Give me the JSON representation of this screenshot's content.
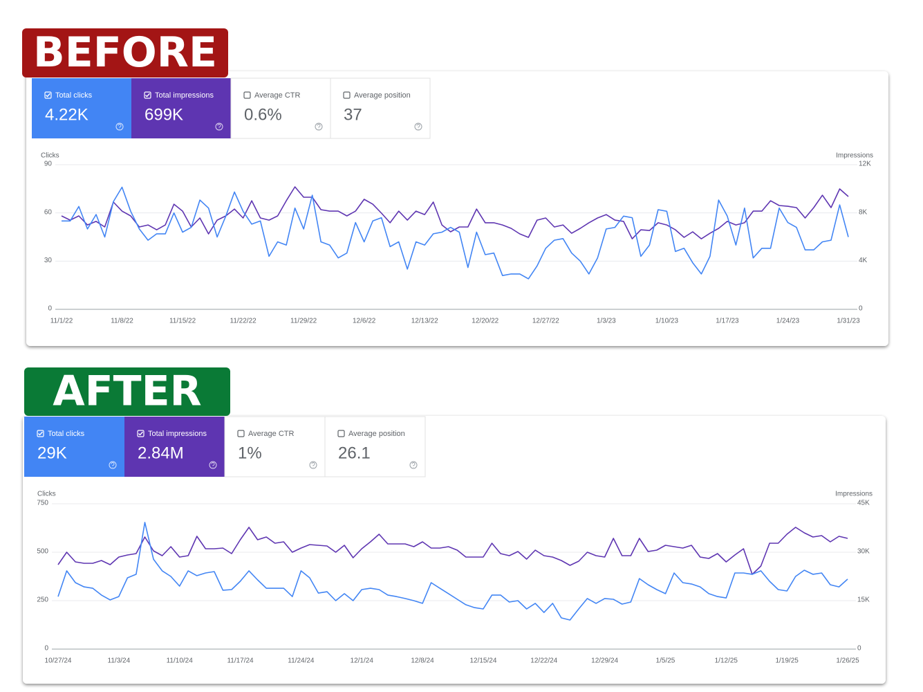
{
  "chart_data": [
    {
      "type": "line",
      "label": "BEFORE",
      "y_label": "Clicks",
      "y2_label": "Impressions",
      "categories": [
        "11/1/22",
        null,
        null,
        null,
        null,
        null,
        null,
        "11/8/22",
        null,
        null,
        null,
        null,
        null,
        null,
        "11/15/22",
        null,
        null,
        null,
        null,
        null,
        null,
        "11/22/22",
        null,
        null,
        null,
        null,
        null,
        null,
        "11/29/22",
        null,
        null,
        null,
        null,
        null,
        null,
        "12/6/22",
        null,
        null,
        null,
        null,
        null,
        null,
        "12/13/22",
        null,
        null,
        null,
        null,
        null,
        null,
        "12/20/22",
        null,
        null,
        null,
        null,
        null,
        null,
        "12/27/22",
        null,
        null,
        null,
        null,
        null,
        null,
        "1/3/23",
        null,
        null,
        null,
        null,
        null,
        null,
        "1/10/23",
        null,
        null,
        null,
        null,
        null,
        null,
        "1/17/23",
        null,
        null,
        null,
        null,
        null,
        null,
        "1/24/23",
        null,
        null,
        null,
        null,
        null,
        null,
        "1/31/23"
      ],
      "ylim": [
        0,
        90
      ],
      "yticks": [
        0,
        30,
        60,
        90
      ],
      "y2lim": [
        0,
        12000
      ],
      "y2ticks": [
        0,
        {
          "value": 4000,
          "label": "4K"
        },
        {
          "value": 8000,
          "label": "8K"
        },
        {
          "value": 12000,
          "label": "12K"
        }
      ],
      "grid": true,
      "series": [
        {
          "name": "Total clicks",
          "total": "4.22K",
          "color": "#4285f4",
          "values": [
            55,
            55,
            64,
            50,
            59,
            45,
            67,
            76,
            61,
            50,
            43,
            47,
            47,
            60,
            48,
            51,
            68,
            63,
            45,
            58,
            73,
            61,
            53,
            55,
            33,
            42,
            40,
            63,
            50,
            71,
            42,
            40,
            32,
            35,
            54,
            42,
            55,
            57,
            39,
            42,
            25,
            42,
            40,
            47,
            48,
            51,
            48,
            26,
            48,
            34,
            35,
            21,
            22,
            22,
            19,
            27,
            38,
            43,
            44,
            35,
            30,
            22,
            32,
            50,
            51,
            58,
            57,
            33,
            40,
            62,
            61,
            36,
            38,
            29,
            22,
            33,
            68,
            58,
            40,
            63,
            32,
            38,
            38,
            63,
            54,
            51,
            37,
            37,
            42,
            43,
            65,
            45
          ]
        },
        {
          "name": "Total impressions",
          "total": "699K",
          "color": "#5e35b1",
          "axis": "y2",
          "values": [
            7750,
            7400,
            7750,
            7000,
            7300,
            6830,
            8900,
            8150,
            7750,
            6830,
            7000,
            6600,
            7000,
            8720,
            8150,
            6830,
            7580,
            6260,
            7400,
            7750,
            8320,
            7580,
            9010,
            7580,
            7400,
            7750,
            9010,
            10160,
            9300,
            9300,
            8270,
            8150,
            8150,
            7750,
            8150,
            9130,
            8720,
            7980,
            7180,
            8150,
            7400,
            8150,
            7860,
            8900,
            7000,
            6430,
            6830,
            6830,
            8320,
            7180,
            7180,
            7000,
            6720,
            6260,
            5970,
            7400,
            7580,
            6830,
            7000,
            6310,
            6720,
            7180,
            7580,
            7860,
            7400,
            7300,
            5850,
            6600,
            6540,
            7180,
            7000,
            6600,
            5970,
            6430,
            5850,
            6310,
            6720,
            7300,
            7000,
            7180,
            8150,
            8150,
            9010,
            8610,
            8550,
            8440,
            7580,
            8440,
            9470,
            8440,
            9990,
            9360
          ]
        }
      ],
      "other_metrics": [
        {
          "name": "Average CTR",
          "value": "0.6%"
        },
        {
          "name": "Average position",
          "value": "37"
        }
      ]
    },
    {
      "type": "line",
      "label": "AFTER",
      "y_label": "Clicks",
      "y2_label": "Impressions",
      "categories": [
        "10/27/24",
        null,
        null,
        null,
        null,
        null,
        null,
        "11/3/24",
        null,
        null,
        null,
        null,
        null,
        null,
        "11/10/24",
        null,
        null,
        null,
        null,
        null,
        null,
        "11/17/24",
        null,
        null,
        null,
        null,
        null,
        null,
        "11/24/24",
        null,
        null,
        null,
        null,
        null,
        null,
        "12/1/24",
        null,
        null,
        null,
        null,
        null,
        null,
        "12/8/24",
        null,
        null,
        null,
        null,
        null,
        null,
        "12/15/24",
        null,
        null,
        null,
        null,
        null,
        null,
        "12/22/24",
        null,
        null,
        null,
        null,
        null,
        null,
        "12/29/24",
        null,
        null,
        null,
        null,
        null,
        null,
        "1/5/25",
        null,
        null,
        null,
        null,
        null,
        null,
        "1/12/25",
        null,
        null,
        null,
        null,
        null,
        null,
        "1/19/25",
        null,
        null,
        null,
        null,
        null,
        null,
        "1/26/25"
      ],
      "ylim": [
        0,
        750
      ],
      "yticks": [
        0,
        250,
        500,
        750
      ],
      "y2lim": [
        0,
        45000
      ],
      "y2ticks": [
        0,
        {
          "value": 15000,
          "label": "15K"
        },
        {
          "value": 30000,
          "label": "30K"
        },
        {
          "value": 45000,
          "label": "45K"
        }
      ],
      "grid": true,
      "series": [
        {
          "name": "Total clicks",
          "total": "29K",
          "color": "#4285f4",
          "values": [
            271,
            404,
            343,
            321,
            314,
            279,
            254,
            271,
            368,
            386,
            654,
            464,
            404,
            375,
            325,
            404,
            379,
            393,
            400,
            304,
            307,
            350,
            404,
            357,
            314,
            314,
            314,
            271,
            404,
            368,
            289,
            296,
            250,
            286,
            250,
            307,
            314,
            307,
            279,
            271,
            261,
            250,
            236,
            343,
            314,
            286,
            257,
            229,
            214,
            207,
            279,
            279,
            243,
            250,
            207,
            236,
            189,
            236,
            161,
            150,
            207,
            261,
            236,
            261,
            257,
            232,
            243,
            364,
            332,
            307,
            286,
            393,
            343,
            336,
            321,
            286,
            271,
            264,
            393,
            393,
            386,
            404,
            350,
            307,
            300,
            375,
            407,
            386,
            393,
            332,
            321,
            361
          ]
        },
        {
          "name": "Total impressions",
          "total": "2.84M",
          "color": "#5e35b1",
          "axis": "y2",
          "values": [
            26140,
            30000,
            27000,
            26570,
            26570,
            27430,
            26140,
            28500,
            29140,
            29570,
            34710,
            30430,
            28930,
            31710,
            28500,
            28930,
            34930,
            31070,
            31070,
            31290,
            29570,
            33860,
            37710,
            33860,
            34710,
            32790,
            33210,
            30000,
            31290,
            32360,
            32140,
            31930,
            30000,
            32140,
            28290,
            31070,
            33210,
            35570,
            32570,
            32570,
            32570,
            31710,
            33210,
            31290,
            31290,
            31710,
            30640,
            28500,
            28500,
            28500,
            32790,
            29570,
            28930,
            30210,
            27860,
            30640,
            28930,
            28500,
            27430,
            25930,
            27210,
            30000,
            28930,
            28500,
            34280,
            28930,
            28930,
            34280,
            30210,
            30640,
            32140,
            31710,
            31290,
            32140,
            28500,
            28070,
            29570,
            27000,
            29140,
            31070,
            23140,
            25710,
            32790,
            32790,
            35570,
            37710,
            36000,
            34710,
            35140,
            33210,
            34930,
            34280
          ]
        }
      ],
      "other_metrics": [
        {
          "name": "Average CTR",
          "value": "1%"
        },
        {
          "name": "Average position",
          "value": "26.1"
        }
      ]
    }
  ]
}
